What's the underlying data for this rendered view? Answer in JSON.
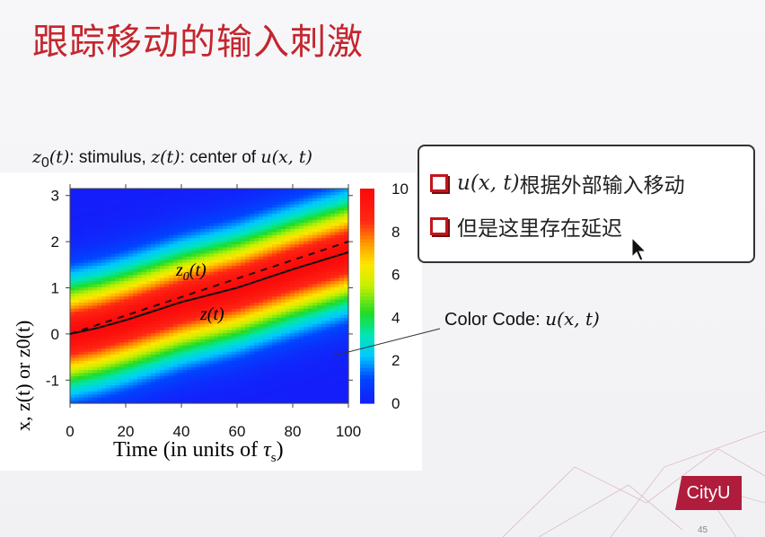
{
  "slide": {
    "title": "跟踪移动的输入刺激",
    "page_number": "45",
    "logo_text": "CityU"
  },
  "callout": {
    "bullets": [
      {
        "math": "u(x, t)",
        "text": " 根据外部输入移动"
      },
      {
        "math": "",
        "text": "但是这里存在延迟"
      }
    ],
    "accent_color": "#c0161c"
  },
  "color_code": {
    "label": "Color Code: ",
    "math": "u(x, t)"
  },
  "chart_data": {
    "type": "heatmap",
    "title": "z0(t): stimulus, z(t): center of u(x,t)",
    "caption_parts": {
      "z0": "z",
      "z0_sub": "0",
      "t": "(t)",
      "stimulus": ": stimulus, ",
      "z": "z(t)",
      "center": ": center of ",
      "u": "u(x, t)"
    },
    "xlabel": "Time (in units of τs)",
    "xlabel_parts": {
      "text": "Time (in units of ",
      "tau": "τ",
      "sub": "s",
      "close": ")"
    },
    "ylabel": "x, z(t) or z0(t)",
    "xlim": [
      0,
      100
    ],
    "ylim": [
      -1.5,
      3.15
    ],
    "xticks": [
      "0",
      "20",
      "40",
      "60",
      "80",
      "100"
    ],
    "yticks": [
      "-1",
      "0",
      "1",
      "2",
      "3"
    ],
    "colorbar": {
      "range": [
        0,
        10
      ],
      "ticks": [
        "0",
        "2",
        "4",
        "6",
        "8",
        "10"
      ],
      "colormap": "jet"
    },
    "peak_value": 10,
    "width": 0.75,
    "series": [
      {
        "name": "z0(t)",
        "style": "dashed",
        "t": [
          0,
          100
        ],
        "values": [
          0,
          2.0
        ]
      },
      {
        "name": "z(t)",
        "style": "solid",
        "t": [
          0,
          10,
          20,
          40,
          60,
          80,
          100
        ],
        "values": [
          0,
          0.13,
          0.3,
          0.69,
          1.0,
          1.4,
          1.77
        ]
      }
    ],
    "annotations": [
      {
        "text": "z0(t)",
        "main": "z",
        "sub": "0",
        "rest": "(t)"
      },
      {
        "text": "z(t)"
      }
    ]
  }
}
